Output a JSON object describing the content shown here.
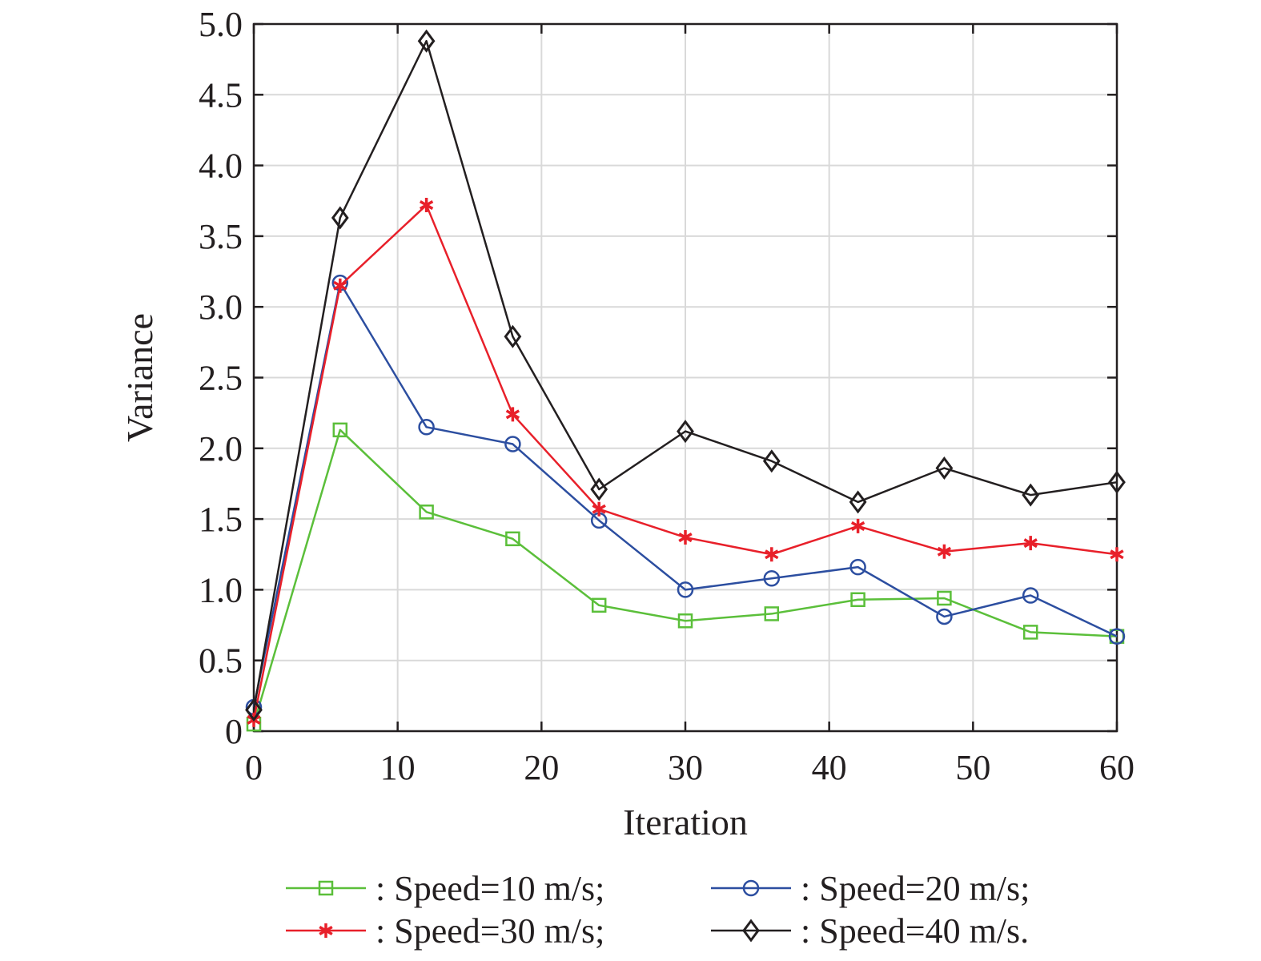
{
  "chart_data": {
    "type": "line",
    "title": "",
    "xlabel": "Iteration",
    "ylabel": "Variance",
    "xlim": [
      0,
      60
    ],
    "ylim": [
      0,
      5
    ],
    "x_ticks": [
      0,
      10,
      20,
      30,
      40,
      50,
      60
    ],
    "x_tick_labels": [
      "0",
      "10",
      "20",
      "30",
      "40",
      "50",
      "60"
    ],
    "y_ticks": [
      0,
      0.5,
      1.0,
      1.5,
      2.0,
      2.5,
      3.0,
      3.5,
      4.0,
      4.5,
      5.0
    ],
    "y_tick_labels": [
      "0",
      "0.5",
      "1.0",
      "1.5",
      "2.0",
      "2.5",
      "3.0",
      "3.5",
      "4.0",
      "4.5",
      "5.0"
    ],
    "grid": true,
    "legend_position": "bottom",
    "x": [
      0,
      6,
      12,
      18,
      24,
      30,
      36,
      42,
      48,
      54,
      60
    ],
    "series": [
      {
        "name": ": Speed=10 m/s;",
        "color": "#5bbf3a",
        "marker": "square",
        "values": [
          0.05,
          2.13,
          1.55,
          1.36,
          0.89,
          0.78,
          0.83,
          0.93,
          0.94,
          0.7,
          0.67
        ]
      },
      {
        "name": ": Speed=20 m/s;",
        "color": "#2c4ea0",
        "marker": "circle",
        "values": [
          0.17,
          3.17,
          2.15,
          2.03,
          1.49,
          1.0,
          1.08,
          1.16,
          0.81,
          0.96,
          0.67
        ]
      },
      {
        "name": ": Speed=30 m/s;",
        "color": "#e8202a",
        "marker": "asterisk",
        "values": [
          0.08,
          3.15,
          3.72,
          2.24,
          1.57,
          1.37,
          1.25,
          1.45,
          1.27,
          1.33,
          1.25
        ]
      },
      {
        "name": ": Speed=40 m/s.",
        "color": "#231f20",
        "marker": "diamond",
        "values": [
          0.15,
          3.63,
          4.88,
          2.79,
          1.71,
          2.12,
          1.91,
          1.62,
          1.86,
          1.67,
          1.76
        ]
      }
    ]
  }
}
